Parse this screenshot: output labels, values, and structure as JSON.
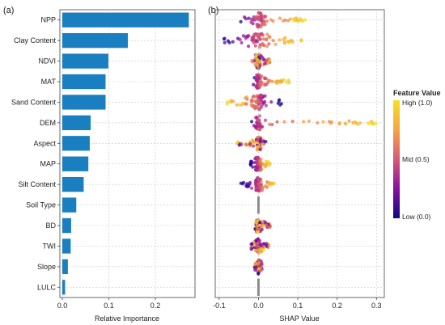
{
  "chart_data": [
    {
      "panel": "(a)",
      "type": "bar",
      "orientation": "horizontal",
      "xlabel": "Relative Importance",
      "ylabel": "",
      "xlim": [
        0.0,
        0.28
      ],
      "xticks": [
        "0.0",
        "0.1",
        "0.2"
      ],
      "grid": true,
      "bar_color": "#1a7fc0",
      "categories": [
        "NPP",
        "Clay Content",
        "NDVI",
        "MAT",
        "Sand Content",
        "DEM",
        "Aspect",
        "MAP",
        "Silt Content",
        "Soil Type",
        "BD",
        "TWI",
        "Slope",
        "LULC"
      ],
      "values": [
        0.272,
        0.141,
        0.099,
        0.093,
        0.093,
        0.061,
        0.059,
        0.056,
        0.046,
        0.03,
        0.019,
        0.018,
        0.012,
        0.006
      ]
    },
    {
      "panel": "(b)",
      "type": "scatter",
      "subtype": "shap-beeswarm",
      "xlabel": "SHAP Value",
      "ylabel": "",
      "xlim": [
        -0.11,
        0.32
      ],
      "xticks": [
        "-0.1",
        "0.0",
        "0.1",
        "0.2",
        "0.3"
      ],
      "grid": true,
      "features": [
        "NPP",
        "Clay Content",
        "NDVI",
        "MAT",
        "Sand Content",
        "DEM",
        "Aspect",
        "MAP",
        "Silt Content",
        "Soil Type",
        "BD",
        "TWI",
        "Slope",
        "LULC"
      ],
      "spread": [
        {
          "min": -0.055,
          "max": 0.12,
          "core": 0.025,
          "high_side": "positive"
        },
        {
          "min": -0.09,
          "max": 0.11,
          "core": 0.04,
          "high_side": "positive"
        },
        {
          "min": -0.02,
          "max": 0.03,
          "core": 0.012,
          "high_side": "mixed"
        },
        {
          "min": -0.015,
          "max": 0.08,
          "core": 0.012,
          "high_side": "positive"
        },
        {
          "min": -0.085,
          "max": 0.06,
          "core": 0.035,
          "high_side": "negative"
        },
        {
          "min": -0.02,
          "max": 0.3,
          "core": 0.012,
          "high_side": "positive"
        },
        {
          "min": -0.055,
          "max": 0.02,
          "core": 0.012,
          "high_side": "mixed"
        },
        {
          "min": -0.02,
          "max": 0.03,
          "core": 0.012,
          "high_side": "positive"
        },
        {
          "min": -0.045,
          "max": 0.04,
          "core": 0.015,
          "high_side": "positive"
        },
        {
          "min": -0.003,
          "max": 0.003,
          "core": 0.002,
          "high_side": "none"
        },
        {
          "min": -0.01,
          "max": 0.03,
          "core": 0.012,
          "high_side": "mixed"
        },
        {
          "min": -0.02,
          "max": 0.03,
          "core": 0.012,
          "high_side": "mixed"
        },
        {
          "min": -0.01,
          "max": 0.01,
          "core": 0.008,
          "high_side": "mixed"
        },
        {
          "min": -0.003,
          "max": 0.003,
          "core": 0.002,
          "high_side": "none"
        }
      ],
      "colorbar": {
        "title": "Feature Value",
        "labels": [
          "High (1.0)",
          "Mid (0.5)",
          "Low (0.0)"
        ],
        "colors": [
          "#f7e01f",
          "#f07d5a",
          "#c53c8a",
          "#6c0ea8",
          "#0d0887"
        ]
      }
    }
  ]
}
